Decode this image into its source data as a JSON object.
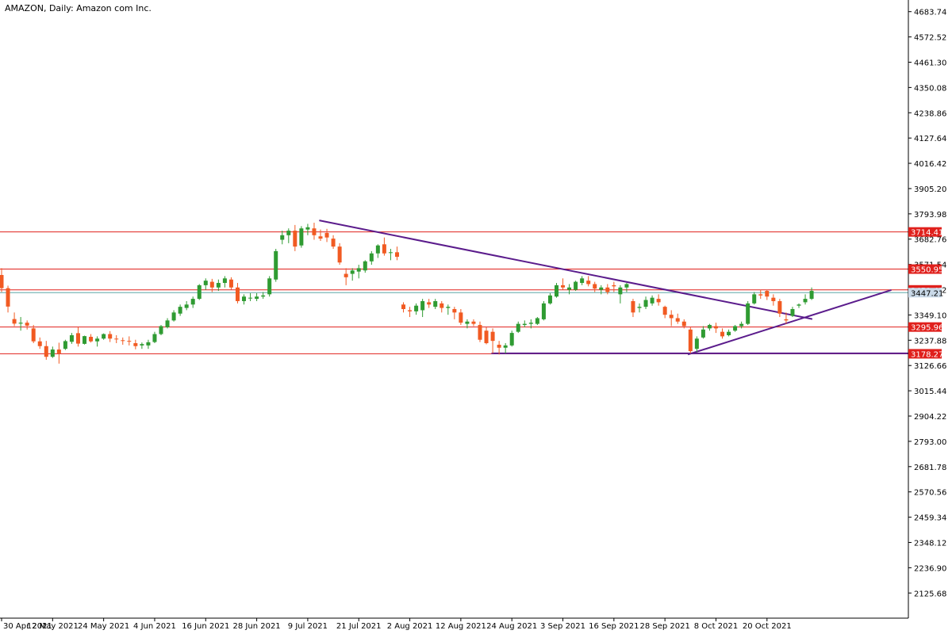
{
  "chart_data": {
    "type": "candlestick",
    "title": "AMAZON, Daily:  Amazon com Inc.",
    "ylim": [
      2015.0,
      4735.0
    ],
    "y_ticks": [
      "4683.74",
      "4572.52",
      "4461.30",
      "4350.08",
      "4238.86",
      "4127.64",
      "4016.42",
      "3905.20",
      "3793.98",
      "3682.76",
      "3571.54",
      "3460.32",
      "3349.10",
      "3237.88",
      "3126.66",
      "3015.44",
      "2904.22",
      "2793.00",
      "2681.78",
      "2570.56",
      "2459.34",
      "2348.12",
      "2236.90",
      "2125.68"
    ],
    "x_labels": [
      "30 Apr 2021",
      "12 May 2021",
      "24 May 2021",
      "4 Jun 2021",
      "16 Jun 2021",
      "28 Jun 2021",
      "9 Jul 2021",
      "21 Jul 2021",
      "2 Aug 2021",
      "12 Aug 2021",
      "24 Aug 2021",
      "3 Sep 2021",
      "16 Sep 2021",
      "28 Sep 2021",
      "8 Oct 2021",
      "20 Oct 2021"
    ],
    "x_label_positions": [
      0,
      8,
      16,
      24,
      32,
      40,
      48,
      56,
      64,
      72,
      80,
      88,
      96,
      104,
      112,
      120
    ],
    "candles": [
      [
        3525,
        3555,
        3450,
        3467
      ],
      [
        3467,
        3478,
        3360,
        3386
      ],
      [
        3331,
        3360,
        3300,
        3311
      ],
      [
        3311,
        3340,
        3280,
        3315
      ],
      [
        3315,
        3325,
        3285,
        3302
      ],
      [
        3290,
        3305,
        3225,
        3233
      ],
      [
        3233,
        3250,
        3200,
        3212
      ],
      [
        3212,
        3235,
        3152,
        3165
      ],
      [
        3165,
        3210,
        3160,
        3197
      ],
      [
        3197,
        3227,
        3135,
        3180
      ],
      [
        3200,
        3240,
        3195,
        3234
      ],
      [
        3231,
        3270,
        3222,
        3260
      ],
      [
        3269,
        3295,
        3210,
        3223
      ],
      [
        3222,
        3258,
        3219,
        3256
      ],
      [
        3253,
        3265,
        3228,
        3233
      ],
      [
        3233,
        3255,
        3210,
        3245
      ],
      [
        3245,
        3268,
        3240,
        3265
      ],
      [
        3265,
        3278,
        3230,
        3245
      ],
      [
        3245,
        3260,
        3225,
        3242
      ],
      [
        3238,
        3250,
        3218,
        3235
      ],
      [
        3235,
        3255,
        3215,
        3232
      ],
      [
        3225,
        3240,
        3198,
        3212
      ],
      [
        3215,
        3228,
        3200,
        3221
      ],
      [
        3215,
        3240,
        3200,
        3229
      ],
      [
        3230,
        3275,
        3225,
        3265
      ],
      [
        3265,
        3305,
        3260,
        3300
      ],
      [
        3295,
        3335,
        3290,
        3325
      ],
      [
        3325,
        3370,
        3320,
        3360
      ],
      [
        3355,
        3395,
        3345,
        3385
      ],
      [
        3380,
        3410,
        3370,
        3395
      ],
      [
        3395,
        3430,
        3380,
        3420
      ],
      [
        3420,
        3485,
        3415,
        3480
      ],
      [
        3480,
        3510,
        3460,
        3500
      ],
      [
        3495,
        3508,
        3450,
        3470
      ],
      [
        3470,
        3505,
        3455,
        3490
      ],
      [
        3490,
        3520,
        3470,
        3510
      ],
      [
        3505,
        3515,
        3460,
        3470
      ],
      [
        3470,
        3490,
        3400,
        3410
      ],
      [
        3410,
        3440,
        3395,
        3430
      ],
      [
        3425,
        3445,
        3410,
        3425
      ],
      [
        3420,
        3445,
        3410,
        3430
      ],
      [
        3430,
        3450,
        3420,
        3435
      ],
      [
        3440,
        3520,
        3430,
        3510
      ],
      [
        3505,
        3640,
        3495,
        3630
      ],
      [
        3680,
        3720,
        3660,
        3700
      ],
      [
        3700,
        3730,
        3665,
        3720
      ],
      [
        3720,
        3745,
        3630,
        3650
      ],
      [
        3655,
        3740,
        3645,
        3730
      ],
      [
        3725,
        3750,
        3700,
        3735
      ],
      [
        3730,
        3755,
        3680,
        3700
      ],
      [
        3695,
        3725,
        3675,
        3685
      ],
      [
        3710,
        3728,
        3670,
        3690
      ],
      [
        3685,
        3700,
        3640,
        3650
      ],
      [
        3650,
        3665,
        3570,
        3580
      ],
      [
        3530,
        3555,
        3480,
        3515
      ],
      [
        3530,
        3555,
        3500,
        3545
      ],
      [
        3540,
        3570,
        3510,
        3555
      ],
      [
        3545,
        3590,
        3535,
        3585
      ],
      [
        3585,
        3630,
        3570,
        3620
      ],
      [
        3620,
        3660,
        3600,
        3655
      ],
      [
        3660,
        3690,
        3610,
        3620
      ],
      [
        3625,
        3640,
        3590,
        3625
      ],
      [
        3625,
        3650,
        3590,
        3605
      ],
      [
        3395,
        3405,
        3360,
        3375
      ],
      [
        3370,
        3385,
        3340,
        3365
      ],
      [
        3365,
        3400,
        3350,
        3390
      ],
      [
        3370,
        3420,
        3340,
        3410
      ],
      [
        3405,
        3420,
        3380,
        3395
      ],
      [
        3385,
        3420,
        3375,
        3410
      ],
      [
        3400,
        3410,
        3360,
        3380
      ],
      [
        3380,
        3395,
        3350,
        3385
      ],
      [
        3375,
        3385,
        3330,
        3360
      ],
      [
        3360,
        3375,
        3305,
        3315
      ],
      [
        3310,
        3330,
        3290,
        3320
      ],
      [
        3320,
        3330,
        3300,
        3310
      ],
      [
        3305,
        3320,
        3230,
        3240
      ],
      [
        3280,
        3295,
        3220,
        3225
      ],
      [
        3275,
        3290,
        3180,
        3235
      ],
      [
        3218,
        3235,
        3175,
        3205
      ],
      [
        3205,
        3225,
        3180,
        3215
      ],
      [
        3215,
        3280,
        3210,
        3270
      ],
      [
        3275,
        3320,
        3270,
        3310
      ],
      [
        3305,
        3325,
        3295,
        3310
      ],
      [
        3310,
        3330,
        3290,
        3315
      ],
      [
        3310,
        3340,
        3305,
        3335
      ],
      [
        3330,
        3410,
        3325,
        3400
      ],
      [
        3400,
        3445,
        3395,
        3435
      ],
      [
        3430,
        3490,
        3425,
        3480
      ],
      [
        3480,
        3510,
        3460,
        3470
      ],
      [
        3460,
        3485,
        3440,
        3470
      ],
      [
        3460,
        3500,
        3455,
        3495
      ],
      [
        3490,
        3520,
        3480,
        3510
      ],
      [
        3500,
        3520,
        3475,
        3485
      ],
      [
        3485,
        3495,
        3450,
        3465
      ],
      [
        3460,
        3480,
        3440,
        3470
      ],
      [
        3470,
        3485,
        3440,
        3450
      ],
      [
        3480,
        3495,
        3450,
        3475
      ],
      [
        3440,
        3480,
        3400,
        3470
      ],
      [
        3470,
        3490,
        3450,
        3485
      ],
      [
        3410,
        3420,
        3340,
        3360
      ],
      [
        3380,
        3400,
        3360,
        3385
      ],
      [
        3385,
        3430,
        3375,
        3415
      ],
      [
        3400,
        3435,
        3390,
        3425
      ],
      [
        3420,
        3440,
        3390,
        3405
      ],
      [
        3385,
        3390,
        3335,
        3350
      ],
      [
        3350,
        3370,
        3300,
        3335
      ],
      [
        3335,
        3355,
        3310,
        3320
      ],
      [
        3320,
        3330,
        3290,
        3300
      ],
      [
        3285,
        3295,
        3180,
        3190
      ],
      [
        3200,
        3255,
        3185,
        3245
      ],
      [
        3250,
        3300,
        3245,
        3285
      ],
      [
        3290,
        3310,
        3280,
        3305
      ],
      [
        3300,
        3315,
        3270,
        3290
      ],
      [
        3275,
        3290,
        3245,
        3255
      ],
      [
        3260,
        3285,
        3255,
        3275
      ],
      [
        3280,
        3305,
        3275,
        3300
      ],
      [
        3300,
        3320,
        3290,
        3310
      ],
      [
        3310,
        3410,
        3305,
        3400
      ],
      [
        3400,
        3450,
        3395,
        3440
      ],
      [
        3440,
        3460,
        3420,
        3435
      ],
      [
        3455,
        3460,
        3415,
        3430
      ],
      [
        3425,
        3440,
        3390,
        3410
      ],
      [
        3410,
        3420,
        3340,
        3355
      ],
      [
        3330,
        3360,
        3310,
        3325
      ],
      [
        3345,
        3385,
        3340,
        3375
      ],
      [
        3390,
        3400,
        3380,
        3395
      ],
      [
        3405,
        3440,
        3395,
        3420
      ],
      [
        3420,
        3470,
        3415,
        3455
      ]
    ],
    "levels": [
      "3714.41",
      "3550.95",
      "3459.42",
      "3295.96",
      "3178.27"
    ],
    "last_price": "3447.21",
    "colors": {
      "bull": "#2f9b32",
      "bear": "#f15a22",
      "level_line": "#e0201c",
      "level_label_bg": "#e0201c",
      "trendline": "#5b1c8c",
      "price_line": "#5fa8a8",
      "axis": "#000000"
    }
  }
}
